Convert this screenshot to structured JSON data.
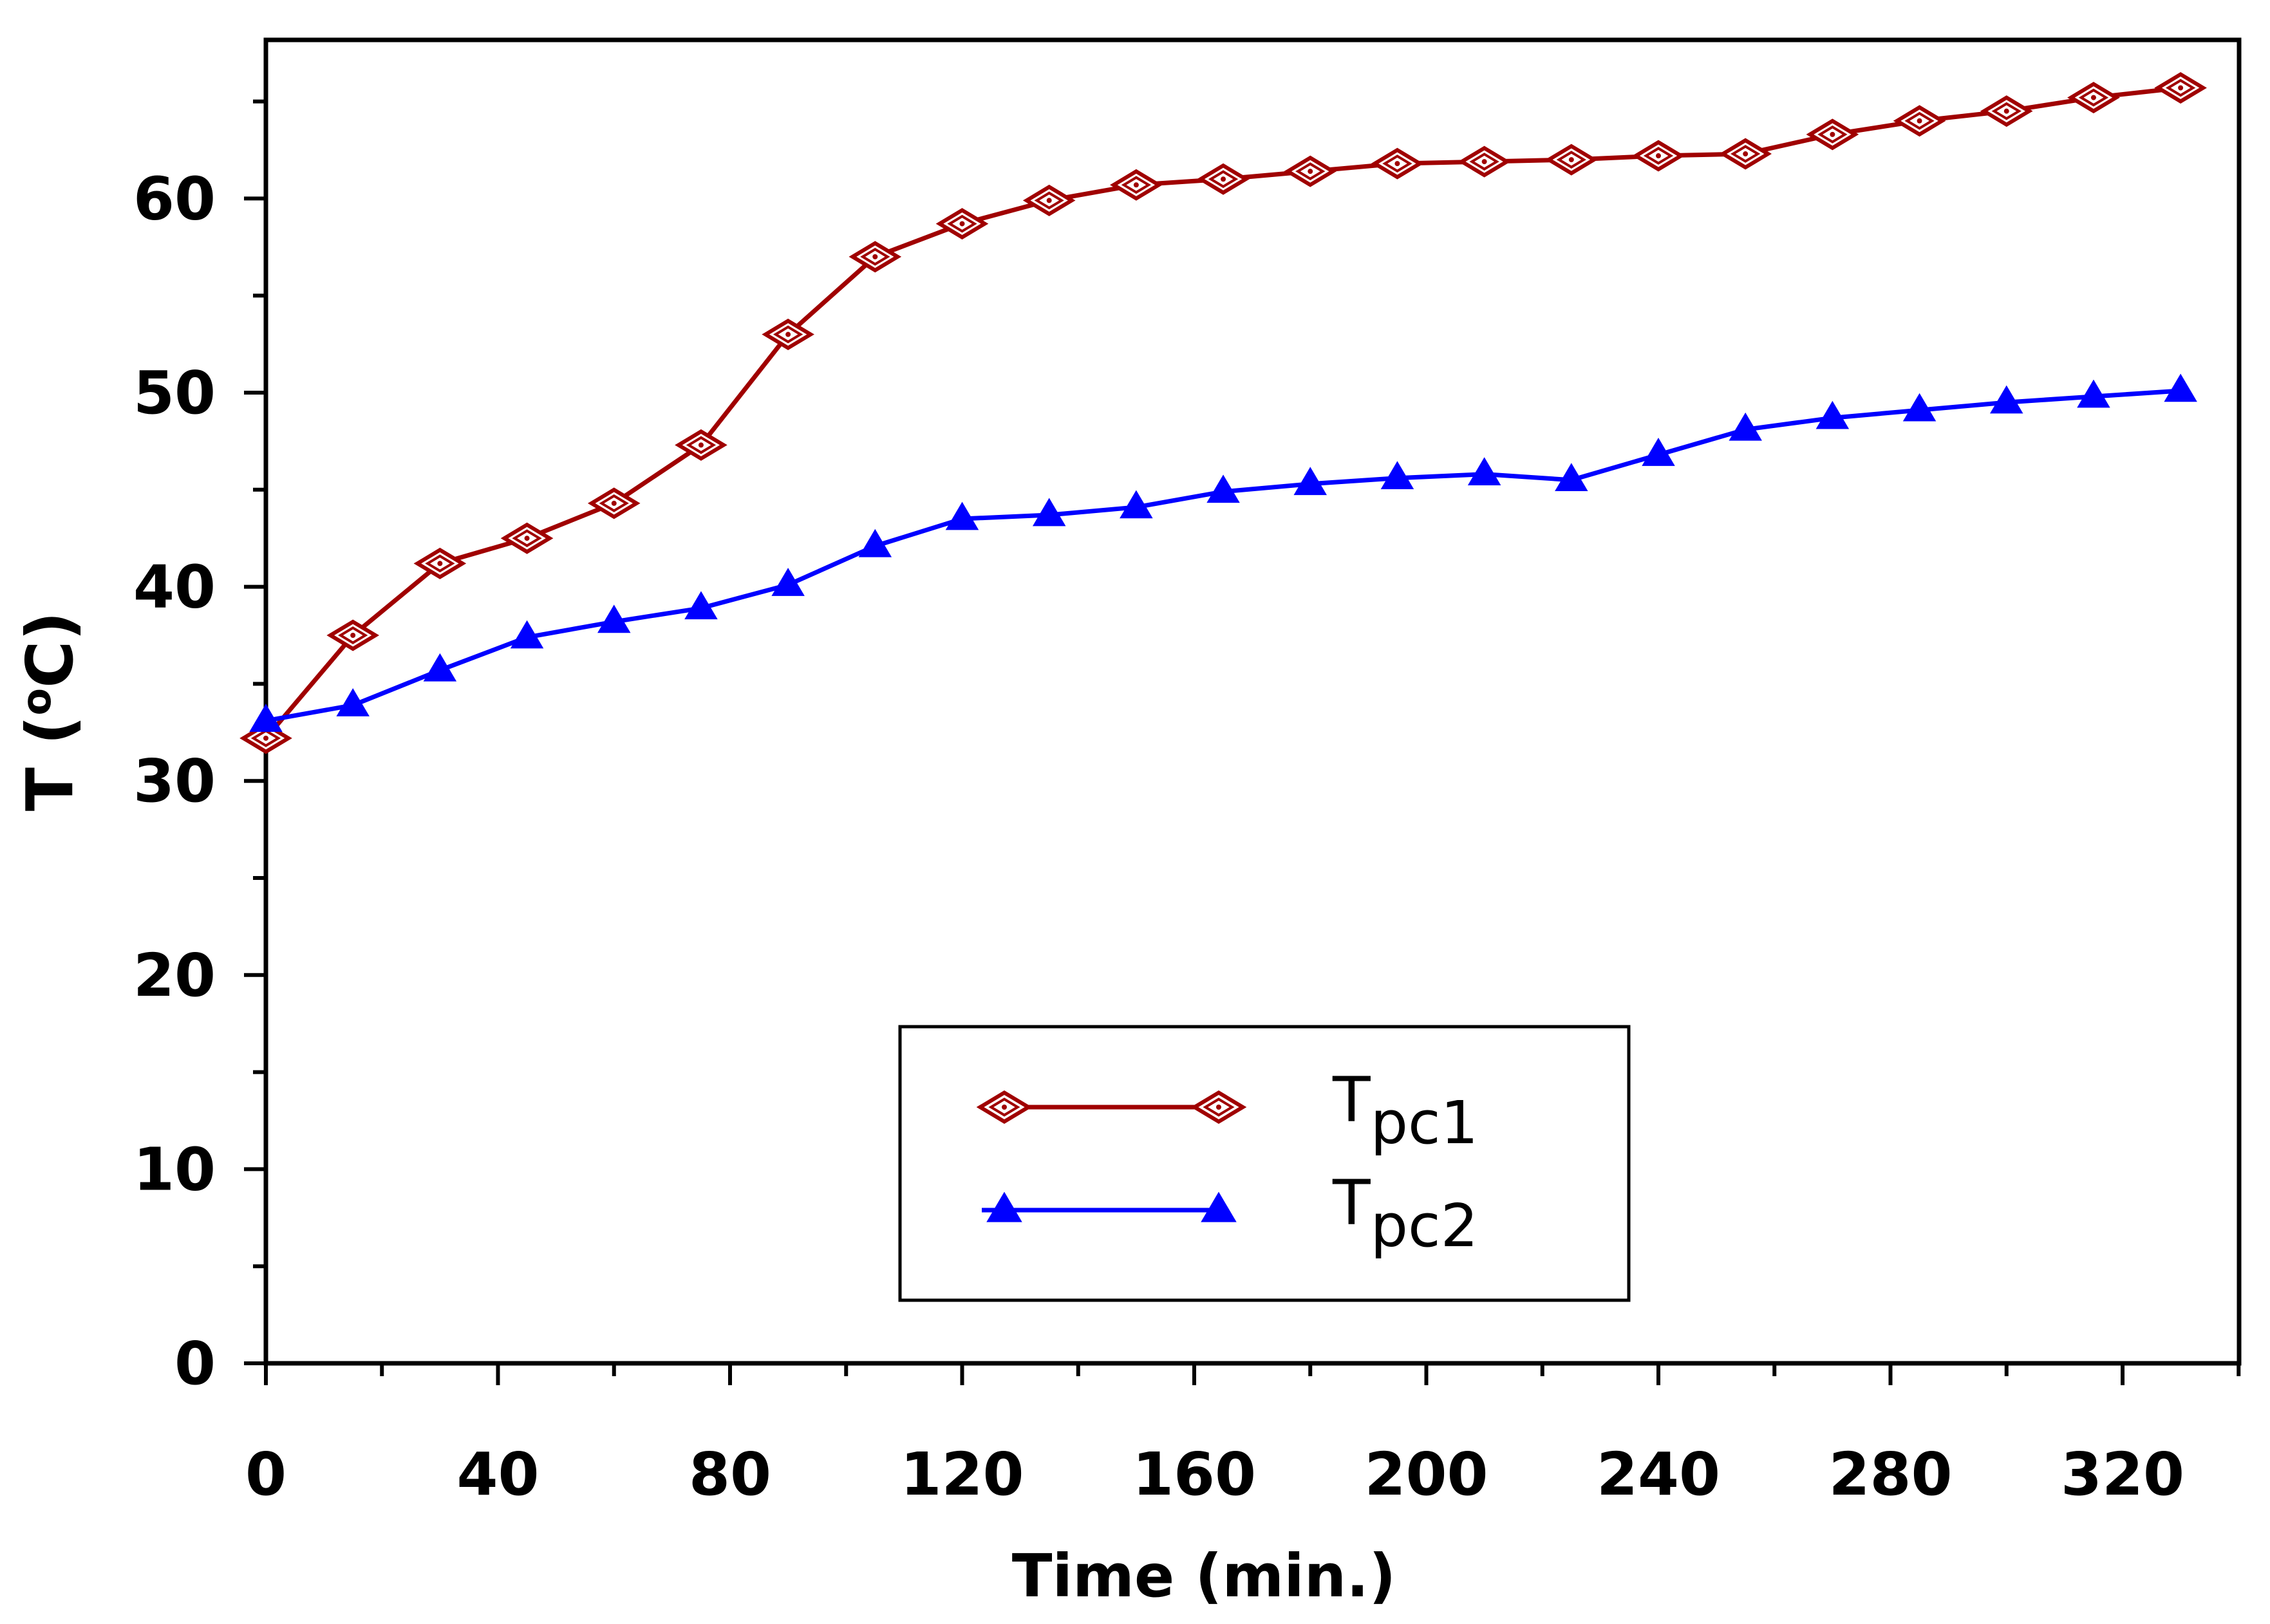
{
  "chart_data": {
    "type": "line",
    "title": "",
    "xlabel": "Time (min.)",
    "ylabel": "T (°C)",
    "ylabel_parts": {
      "main": "T (",
      "degree": "o",
      "unit": "C)"
    },
    "xlim": [
      0,
      340
    ],
    "ylim": [
      0,
      67
    ],
    "x_ticks": [
      0,
      40,
      80,
      120,
      160,
      200,
      240,
      280,
      320
    ],
    "y_ticks": [
      0,
      10,
      20,
      30,
      40,
      50,
      60
    ],
    "x_minor_step": 20,
    "y_minor_step": 5,
    "grid": false,
    "legend_position": "bottom-center",
    "series": [
      {
        "name": "Tpc1",
        "label_main": "T",
        "label_sub": "pc1",
        "color": "#a00000",
        "marker": "diamond-open",
        "x": [
          0,
          15,
          30,
          45,
          60,
          75,
          90,
          105,
          120,
          135,
          150,
          165,
          180,
          195,
          210,
          225,
          240,
          255,
          270,
          285,
          300,
          315,
          330
        ],
        "values": [
          32.2,
          37.5,
          41.2,
          42.5,
          44.3,
          47.3,
          53.0,
          57.0,
          58.7,
          59.9,
          60.7,
          61.0,
          61.4,
          61.8,
          61.9,
          62.0,
          62.2,
          62.3,
          63.3,
          64.0,
          64.5,
          65.2,
          65.7
        ]
      },
      {
        "name": "Tpc2",
        "label_main": "T",
        "label_sub": "pc2",
        "color": "#0000ff",
        "marker": "triangle-filled",
        "x": [
          0,
          15,
          30,
          45,
          60,
          75,
          90,
          105,
          120,
          135,
          150,
          165,
          180,
          195,
          210,
          225,
          240,
          255,
          270,
          285,
          300,
          315,
          330
        ],
        "values": [
          33.1,
          33.9,
          35.7,
          37.4,
          38.2,
          38.9,
          40.1,
          42.1,
          43.5,
          43.7,
          44.1,
          44.9,
          45.3,
          45.6,
          45.8,
          45.5,
          46.8,
          48.1,
          48.7,
          49.1,
          49.5,
          49.8,
          50.1
        ]
      }
    ]
  }
}
